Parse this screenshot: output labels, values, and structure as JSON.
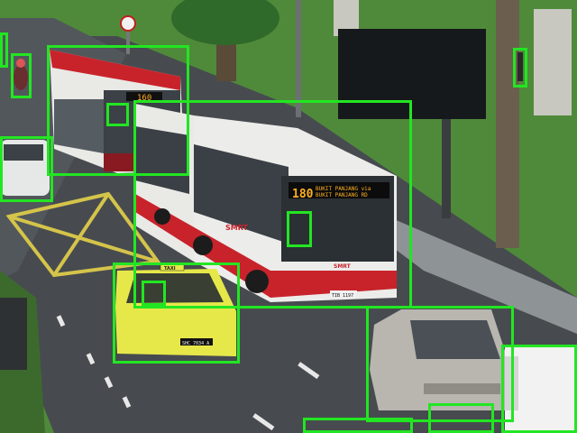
{
  "scene": {
    "signs": {
      "bus_front_route": "180",
      "bus_front_dest_1": "BUKIT PANJANG via",
      "bus_front_dest_2": "BUKIT PANJANG RD",
      "bus_back_route": "160",
      "taxi_roof": "TAXI",
      "taxi_plate": "SHC 7034 A",
      "bus_plate": "TIB 1197",
      "bus_logo_side": "SMRT",
      "bus_logo_front": "SMRT"
    },
    "colors": {
      "detection_box": "#22e622",
      "grass": "#4f8a3a",
      "road": "#474b4f",
      "bus_red": "#c8232b",
      "taxi_yellow": "#e6e84a"
    }
  },
  "detections": [
    {
      "label": "bus"
    },
    {
      "label": "bus"
    },
    {
      "label": "car"
    },
    {
      "label": "taxi"
    },
    {
      "label": "car"
    },
    {
      "label": "van"
    },
    {
      "label": "motorcyclist"
    },
    {
      "label": "pedestrian"
    },
    {
      "label": "pedestrian"
    },
    {
      "label": "bus-driver"
    },
    {
      "label": "bus-driver"
    },
    {
      "label": "taxi-driver"
    },
    {
      "label": "vehicle-partial"
    },
    {
      "label": "vehicle-partial"
    }
  ]
}
